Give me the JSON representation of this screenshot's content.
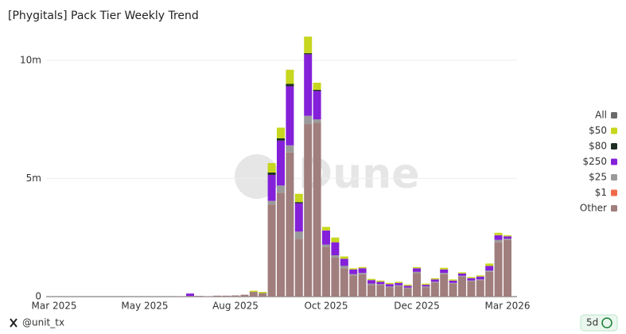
{
  "chart_data": {
    "type": "stacked-bar",
    "title": "[Phygitals] Pack Tier Weekly Trend",
    "watermark": "Dune",
    "author": "@unit_tx",
    "refresh": "5d",
    "categories": [
      "Mar 2025",
      null,
      null,
      null,
      null,
      null,
      null,
      null,
      null,
      null,
      "May 2025",
      null,
      null,
      null,
      null,
      null,
      null,
      null,
      null,
      null,
      "Aug 2025",
      null,
      null,
      null,
      null,
      null,
      null,
      null,
      null,
      null,
      "Oct 2025",
      null,
      null,
      null,
      null,
      null,
      null,
      null,
      null,
      null,
      "Dec 2025",
      null,
      null,
      null,
      null,
      null,
      null,
      null,
      null,
      null,
      "Mar 2026"
    ],
    "ylim": [
      0,
      10800000
    ],
    "yticks": [
      0,
      {
        "value": 5000000,
        "label": "5m"
      },
      {
        "value": 10000000,
        "label": "10m"
      }
    ],
    "grid": true,
    "legend": "right",
    "series": [
      {
        "name": "All",
        "color": "#6b6b6b",
        "values": [
          0,
          0,
          0,
          0,
          0,
          0,
          0,
          0,
          0,
          0,
          0,
          0,
          0,
          0,
          0,
          0,
          0,
          0,
          0,
          0,
          0,
          0,
          0,
          0,
          0,
          0,
          0,
          0,
          0,
          0,
          0,
          0,
          0,
          0,
          0,
          0,
          0,
          0,
          0,
          0,
          0,
          0,
          0,
          0,
          0,
          0,
          0,
          0,
          0,
          0,
          0
        ]
      },
      {
        "name": "$50",
        "color": "#c7d61e",
        "values": [
          0,
          0,
          0,
          0,
          0,
          0,
          0,
          0,
          0,
          0,
          0,
          0,
          0,
          0,
          0,
          0,
          0,
          0,
          0,
          0,
          0,
          0,
          50000,
          50000,
          400000,
          450000,
          600000,
          350000,
          700000,
          300000,
          150000,
          200000,
          100000,
          50000,
          50000,
          50000,
          50000,
          50000,
          50000,
          50000,
          50000,
          50000,
          50000,
          70000,
          50000,
          50000,
          50000,
          50000,
          100000,
          100000,
          50000
        ]
      },
      {
        "name": "$80",
        "color": "#1c2e22",
        "values": [
          0,
          0,
          0,
          0,
          0,
          0,
          0,
          0,
          0,
          0,
          0,
          0,
          0,
          0,
          0,
          0,
          0,
          0,
          0,
          0,
          0,
          0,
          0,
          0,
          100000,
          100000,
          100000,
          50000,
          50000,
          50000,
          0,
          0,
          0,
          0,
          0,
          0,
          0,
          0,
          0,
          0,
          0,
          0,
          0,
          0,
          0,
          0,
          0,
          0,
          0,
          0,
          0
        ]
      },
      {
        "name": "$250",
        "color": "#8420d9",
        "values": [
          0,
          0,
          0,
          0,
          0,
          0,
          0,
          0,
          0,
          0,
          0,
          0,
          0,
          0,
          0,
          100000,
          0,
          0,
          0,
          0,
          0,
          0,
          0,
          0,
          1100000,
          1900000,
          2500000,
          1200000,
          2600000,
          1200000,
          600000,
          550000,
          300000,
          200000,
          200000,
          150000,
          100000,
          100000,
          100000,
          80000,
          150000,
          70000,
          100000,
          150000,
          100000,
          100000,
          100000,
          120000,
          200000,
          200000,
          100000
        ]
      },
      {
        "name": "$25",
        "color": "#9a9a9a",
        "values": [
          0,
          0,
          0,
          0,
          0,
          0,
          0,
          0,
          0,
          0,
          0,
          0,
          0,
          0,
          0,
          0,
          0,
          0,
          0,
          0,
          0,
          0,
          0,
          0,
          150000,
          300000,
          300000,
          300000,
          350000,
          150000,
          100000,
          100000,
          100000,
          50000,
          50000,
          50000,
          30000,
          30000,
          30000,
          30000,
          50000,
          30000,
          30000,
          50000,
          30000,
          30000,
          30000,
          30000,
          50000,
          100000,
          50000
        ]
      },
      {
        "name": "$1",
        "color": "#f06a4a",
        "values": [
          0,
          0,
          0,
          0,
          0,
          0,
          0,
          0,
          0,
          0,
          0,
          0,
          0,
          0,
          0,
          0,
          0,
          0,
          0,
          0,
          0,
          0,
          0,
          0,
          0,
          0,
          0,
          0,
          0,
          0,
          0,
          0,
          0,
          0,
          0,
          0,
          0,
          0,
          0,
          0,
          0,
          0,
          0,
          0,
          0,
          0,
          0,
          0,
          0,
          0,
          0
        ]
      },
      {
        "name": "Other",
        "color": "#a07e7d",
        "values": [
          0,
          0,
          0,
          0,
          0,
          0,
          0,
          0,
          0,
          0,
          0,
          0,
          0,
          0,
          20000,
          30000,
          30000,
          20000,
          40000,
          40000,
          50000,
          80000,
          200000,
          150000,
          3900000,
          4400000,
          6100000,
          2450000,
          7300000,
          7350000,
          2100000,
          1650000,
          1200000,
          900000,
          950000,
          500000,
          500000,
          400000,
          450000,
          350000,
          1000000,
          400000,
          600000,
          950000,
          550000,
          850000,
          650000,
          700000,
          1050000,
          2300000,
          2400000
        ]
      }
    ]
  }
}
